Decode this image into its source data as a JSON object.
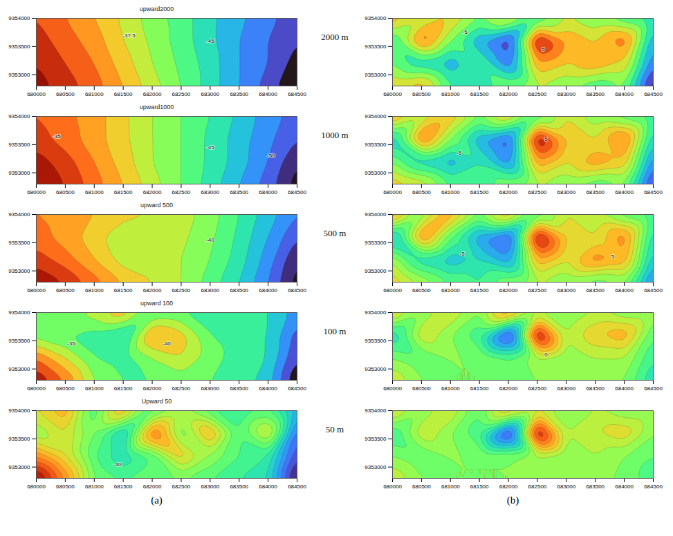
{
  "chart_data": [
    {
      "type": "contour",
      "title": "upward2000",
      "x": [
        680000,
        680500,
        681000,
        681500,
        682000,
        682500,
        683000,
        683500,
        684000,
        684500
      ],
      "y": [
        9352800,
        9353200,
        9353600,
        9354000
      ],
      "values": [
        [
          -29,
          -31,
          -33,
          -36,
          -39,
          -42,
          -45,
          -48,
          -51,
          -54
        ],
        [
          -30,
          -32,
          -34,
          -37,
          -40,
          -42.5,
          -45,
          -48,
          -50,
          -53
        ],
        [
          -31,
          -33,
          -35,
          -38,
          -40.5,
          -43,
          -45.5,
          -48,
          -50,
          -52
        ],
        [
          -32,
          -34,
          -36,
          -38.5,
          -41,
          -43,
          -45.5,
          -47.5,
          -49.5,
          -51
        ]
      ],
      "xlim": [
        680000,
        684500
      ],
      "xticks": [
        680000,
        680500,
        681000,
        681500,
        682000,
        682500,
        683000,
        683500,
        684000,
        684500
      ],
      "ylim": [
        9352800,
        9354000
      ],
      "yticks": [
        9353000,
        9353500,
        9354000
      ],
      "annotations": [
        {
          "x": 681600,
          "y": 9353700,
          "text": "-37.5"
        },
        {
          "x": 683000,
          "y": 9353600,
          "text": "-45"
        }
      ]
    },
    {
      "type": "contour",
      "title": "upward1000",
      "x": [
        680000,
        680500,
        681000,
        681500,
        682000,
        682500,
        683000,
        683500,
        684000,
        684500
      ],
      "y": [
        9352800,
        9353200,
        9353600,
        9354000
      ],
      "values": [
        [
          -28,
          -30,
          -33,
          -36,
          -39,
          -42,
          -45,
          -48,
          -51,
          -55
        ],
        [
          -29,
          -31,
          -34,
          -37,
          -40,
          -42,
          -44.5,
          -47,
          -50,
          -54
        ],
        [
          -31,
          -33,
          -35,
          -37.5,
          -40,
          -42,
          -44.5,
          -47,
          -49.5,
          -52
        ],
        [
          -32,
          -33.5,
          -35,
          -37.5,
          -40,
          -42,
          -44,
          -46.5,
          -49,
          -51
        ]
      ],
      "xlim": [
        680000,
        684500
      ],
      "xticks": [
        680000,
        680500,
        681000,
        681500,
        682000,
        682500,
        683000,
        683500,
        684000,
        684500
      ],
      "ylim": [
        9352800,
        9354000
      ],
      "yticks": [
        9353000,
        9353500,
        9354000
      ],
      "annotations": [
        {
          "x": 680350,
          "y": 9353650,
          "text": "-35"
        },
        {
          "x": 683000,
          "y": 9353450,
          "text": "-45"
        },
        {
          "x": 684050,
          "y": 9353300,
          "text": "-50"
        }
      ]
    },
    {
      "type": "contour",
      "title": "upward 500",
      "x": [
        680000,
        680500,
        681000,
        681500,
        682000,
        682500,
        683000,
        683500,
        684000,
        684500
      ],
      "y": [
        9352800,
        9353200,
        9353600,
        9354000
      ],
      "values": [
        [
          -28,
          -30,
          -33,
          -36,
          -38,
          -40,
          -43,
          -46,
          -50,
          -55
        ],
        [
          -31,
          -33,
          -36,
          -39,
          -38,
          -40,
          -42,
          -45,
          -49,
          -54
        ],
        [
          -33,
          -35,
          -37,
          -40,
          -38.5,
          -39.5,
          -41.5,
          -44.5,
          -48,
          -52
        ],
        [
          -34,
          -35,
          -36,
          -37,
          -38,
          -39,
          -41,
          -44,
          -47,
          -50
        ]
      ],
      "xlim": [
        680000,
        684500
      ],
      "xticks": [
        680000,
        680500,
        681000,
        681500,
        682000,
        682500,
        683000,
        683500,
        684000,
        684500
      ],
      "ylim": [
        9352800,
        9354000
      ],
      "yticks": [
        9353000,
        9353500,
        9354000
      ],
      "annotations": [
        {
          "x": 683000,
          "y": 9353550,
          "text": "-40"
        }
      ]
    },
    {
      "type": "contour",
      "title": "upward 100",
      "x": [
        680000,
        680500,
        681000,
        681500,
        682000,
        682500,
        683000,
        683500,
        684000,
        684500
      ],
      "y": [
        9352800,
        9353200,
        9353600,
        9354000
      ],
      "values": [
        [
          -30,
          -34,
          -40,
          -42,
          -42,
          -41,
          -42,
          -43,
          -45,
          -52
        ],
        [
          -34,
          -38,
          -42,
          -43,
          -40,
          -38,
          -41,
          -43,
          -44,
          -50
        ],
        [
          -41,
          -42,
          -43,
          -45,
          -35,
          -37,
          -42,
          -43,
          -44,
          -49
        ],
        [
          -42,
          -42,
          -39,
          -36,
          -42,
          -42,
          -43,
          -42,
          -44,
          -47
        ]
      ],
      "xlim": [
        680000,
        684500
      ],
      "xticks": [
        680000,
        680500,
        681000,
        681500,
        682000,
        682500,
        683000,
        683500,
        684000,
        684500
      ],
      "ylim": [
        9352800,
        9354000
      ],
      "yticks": [
        9353000,
        9353500,
        9354000
      ],
      "annotations": [
        {
          "x": 680600,
          "y": 9353450,
          "text": "-35"
        },
        {
          "x": 682250,
          "y": 9353450,
          "text": "-40"
        }
      ]
    },
    {
      "type": "contour",
      "title": "Upward 50",
      "x": [
        680000,
        680500,
        681000,
        681500,
        682000,
        682500,
        683000,
        683500,
        684000,
        684500
      ],
      "y": [
        9352800,
        9353200,
        9353600,
        9354000
      ],
      "values": [
        [
          -30,
          -35,
          -41,
          -42,
          -41,
          -41,
          -42,
          -43,
          -44,
          -51
        ],
        [
          -35,
          -38,
          -42,
          -44,
          -42,
          -37,
          -40,
          -42,
          -43,
          -49
        ],
        [
          -40,
          -38,
          -41,
          -45,
          -34,
          -41,
          -36,
          -42,
          -38,
          -48
        ],
        [
          -38,
          -36,
          -42,
          -36,
          -42,
          -40,
          -42,
          -43,
          -42,
          -46
        ]
      ],
      "xlim": [
        680000,
        684500
      ],
      "xticks": [
        680000,
        680500,
        681000,
        681500,
        682000,
        682500,
        683000,
        683500,
        684000,
        684500
      ],
      "ylim": [
        9352800,
        9354000
      ],
      "yticks": [
        9353000,
        9353500,
        9354000
      ],
      "annotations": [
        {
          "x": 681400,
          "y": 9353050,
          "text": "-40"
        }
      ]
    },
    {
      "type": "contour",
      "x": [
        680000,
        680500,
        681000,
        681500,
        682000,
        682500,
        683000,
        683500,
        684000,
        684500
      ],
      "y": [
        9352800,
        9353200,
        9353600,
        9354000
      ],
      "values": [
        [
          2,
          3,
          -1,
          -2,
          0,
          1,
          0,
          -1,
          0,
          -6
        ],
        [
          0,
          -2,
          -3,
          -1,
          -4,
          3,
          2,
          3,
          2,
          -4
        ],
        [
          -1,
          4,
          0,
          -3,
          -5,
          6,
          3,
          2,
          4,
          -3
        ],
        [
          3,
          1,
          2,
          0,
          2,
          -1,
          1,
          0,
          -1,
          -2
        ]
      ],
      "xlim": [
        680000,
        684500
      ],
      "xticks": [
        680000,
        680500,
        681000,
        681500,
        682000,
        682500,
        683000,
        683500,
        684000,
        684500
      ],
      "ylim": [
        9352800,
        9354000
      ],
      "yticks": [
        9353000,
        9353500,
        9354000
      ],
      "annotations": [
        {
          "x": 681250,
          "y": 9353750,
          "text": "-5"
        },
        {
          "x": 682600,
          "y": 9353450,
          "text": "5"
        }
      ]
    },
    {
      "type": "contour",
      "x": [
        680000,
        680500,
        681000,
        681500,
        682000,
        682500,
        683000,
        683500,
        684000,
        684500
      ],
      "y": [
        9352800,
        9353200,
        9353600,
        9354000
      ],
      "values": [
        [
          3,
          2,
          -1,
          -2,
          0,
          1,
          0,
          -1,
          0,
          -7
        ],
        [
          0,
          -3,
          -4,
          -2,
          -5,
          4,
          2,
          4,
          3,
          -5
        ],
        [
          -3,
          5,
          0,
          -4,
          -6,
          8,
          3,
          2,
          5,
          -3
        ],
        [
          4,
          1,
          3,
          0,
          3,
          -1,
          2,
          0,
          -1,
          -2
        ]
      ],
      "xlim": [
        680000,
        684500
      ],
      "xticks": [
        680000,
        680500,
        681000,
        681500,
        682000,
        682500,
        683000,
        683500,
        684000,
        684500
      ],
      "ylim": [
        9352800,
        9354000
      ],
      "yticks": [
        9353000,
        9353500,
        9354000
      ],
      "annotations": [
        {
          "x": 681150,
          "y": 9353350,
          "text": "-5"
        },
        {
          "x": 682650,
          "y": 9353600,
          "text": "5"
        }
      ]
    },
    {
      "type": "contour",
      "x": [
        680000,
        680500,
        681000,
        681500,
        682000,
        682500,
        683000,
        683500,
        684000,
        684500
      ],
      "y": [
        9352800,
        9353200,
        9353600,
        9354000
      ],
      "values": [
        [
          3,
          1,
          -1,
          -2,
          0,
          1,
          0,
          -1,
          0,
          -6
        ],
        [
          1,
          -3,
          -4,
          -3,
          -5,
          4,
          2,
          5,
          4,
          -4
        ],
        [
          -4,
          5,
          -1,
          -5,
          -7,
          9,
          3,
          2,
          5,
          -3
        ],
        [
          5,
          0,
          4,
          0,
          4,
          -1,
          2,
          1,
          -1,
          -2
        ]
      ],
      "xlim": [
        680000,
        684500
      ],
      "xticks": [
        680000,
        680500,
        681000,
        681500,
        682000,
        682500,
        683000,
        683500,
        684000,
        684500
      ],
      "ylim": [
        9352800,
        9354000
      ],
      "yticks": [
        9353000,
        9353500,
        9354000
      ],
      "annotations": [
        {
          "x": 681200,
          "y": 9353300,
          "text": "-5"
        },
        {
          "x": 683800,
          "y": 9353250,
          "text": "5"
        }
      ]
    },
    {
      "type": "contour",
      "x": [
        680000,
        680500,
        681000,
        681500,
        682000,
        682500,
        683000,
        683500,
        684000,
        684500
      ],
      "y": [
        9352800,
        9353200,
        9353600,
        9354000
      ],
      "values": [
        [
          2,
          0,
          0,
          0,
          0,
          0,
          0,
          0,
          0,
          -3
        ],
        [
          0,
          -1,
          0,
          0,
          -1,
          1,
          0,
          1,
          1,
          -2
        ],
        [
          -3,
          2,
          0,
          -2,
          -8,
          9,
          1,
          3,
          4,
          -1
        ],
        [
          3,
          0,
          2,
          0,
          5,
          1,
          0,
          1,
          0,
          0
        ]
      ],
      "xlim": [
        680000,
        684500
      ],
      "xticks": [
        680000,
        680500,
        681000,
        681500,
        682000,
        682500,
        683000,
        683500,
        684000,
        684500
      ],
      "ylim": [
        9352800,
        9354000
      ],
      "yticks": [
        9353000,
        9353500,
        9354000
      ],
      "annotations": [
        {
          "x": 682650,
          "y": 9353250,
          "text": "0"
        }
      ]
    },
    {
      "type": "contour",
      "x": [
        680000,
        680500,
        681000,
        681500,
        682000,
        682500,
        683000,
        683500,
        684000,
        684500
      ],
      "y": [
        9352800,
        9353200,
        9353600,
        9354000
      ],
      "values": [
        [
          2,
          0,
          0,
          0,
          0,
          0,
          0,
          0,
          0,
          -2
        ],
        [
          0,
          -1,
          0,
          0,
          0,
          1,
          0,
          1,
          0,
          -1
        ],
        [
          -2,
          2,
          0,
          -2,
          -9,
          10,
          1,
          2,
          3,
          0
        ],
        [
          3,
          0,
          2,
          -1,
          4,
          2,
          0,
          1,
          0,
          0
        ]
      ],
      "xlim": [
        680000,
        684500
      ],
      "xticks": [
        680000,
        680500,
        681000,
        681500,
        682000,
        682500,
        683000,
        683500,
        684000,
        684500
      ],
      "ylim": [
        9352800,
        9354000
      ],
      "yticks": [
        9353000,
        9353500,
        9354000
      ],
      "annotations": []
    }
  ],
  "row_labels": [
    "2000 m",
    "1000 m",
    "500 m",
    "100 m",
    "50 m"
  ],
  "column_labels": [
    "(a)",
    "(b)"
  ]
}
